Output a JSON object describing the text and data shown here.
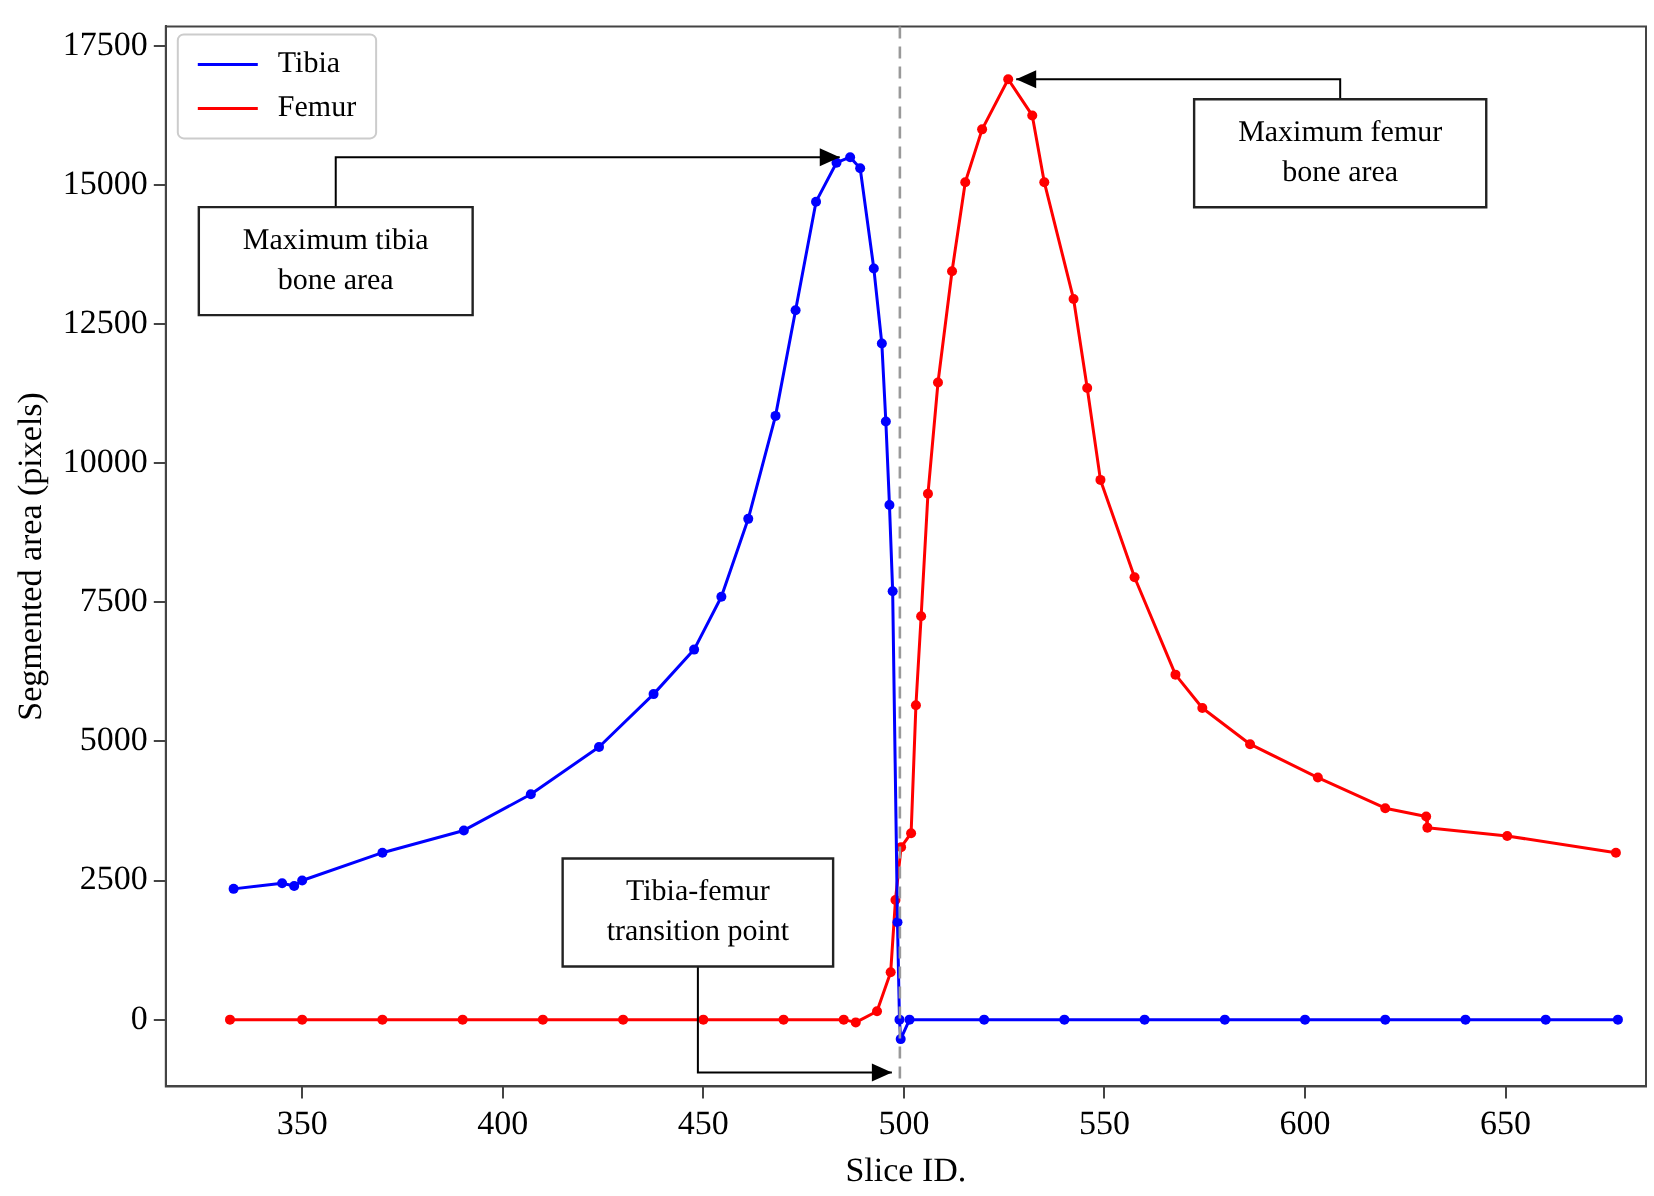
{
  "chart_data": {
    "type": "line",
    "xlabel": "Slice ID.",
    "ylabel": "Segmented area (pixels)",
    "xlim": [
      316,
      685
    ],
    "xticks": [
      350,
      400,
      450,
      500,
      550,
      600,
      650
    ],
    "ylim": [
      -1200,
      17850
    ],
    "yticks": [
      0,
      2500,
      5000,
      7500,
      10000,
      12500,
      15000,
      17500
    ],
    "grid": false,
    "legend": "top left",
    "marker": "circle",
    "line_style": "solid",
    "series": [
      {
        "name": "Tibia",
        "color": "#0000ff",
        "x": [
          332.9,
          345,
          348,
          350,
          370,
          390.3,
          407,
          424,
          437.6,
          447.7,
          454.5,
          461.2,
          468,
          473,
          478.1,
          483.2,
          486.6,
          489.1,
          492.5,
          494.5,
          495.5,
          496.4,
          497.2,
          498.4,
          498.9,
          499.2,
          501.4,
          520,
          540,
          560,
          580,
          600,
          620,
          640,
          660,
          678
        ],
        "values": [
          2350,
          2450,
          2400,
          2500,
          3000,
          3400,
          4050,
          4900,
          5850,
          6650,
          7600,
          9000,
          10850,
          12750,
          14700,
          15400,
          15500,
          15300,
          13500,
          12150,
          10750,
          9250,
          7700,
          1750,
          0,
          -350,
          0,
          0,
          0,
          0,
          0,
          0,
          0,
          0,
          0,
          0
        ]
      },
      {
        "name": "Femur",
        "color": "#ff0000",
        "x": [
          332,
          350,
          370,
          390,
          410,
          430,
          450,
          470,
          485,
          488,
          493.3,
          496.7,
          497.9,
          499.3,
          501.8,
          503,
          504.3,
          506,
          508.5,
          512,
          515.3,
          519.5,
          526,
          532,
          535,
          542.3,
          545.7,
          549,
          557.5,
          567.7,
          574.4,
          586.3,
          603.2,
          620,
          630.2,
          630.5,
          650.4,
          677.5
        ],
        "values": [
          0,
          0,
          0,
          0,
          0,
          0,
          0,
          0,
          0,
          -50,
          150,
          850,
          2150,
          3100,
          3350,
          5650,
          7250,
          9450,
          11450,
          13450,
          15050,
          16000,
          16900,
          16250,
          15050,
          12950,
          11350,
          9700,
          7950,
          6200,
          5600,
          4950,
          4350,
          3800,
          3650,
          3450,
          3300,
          3000
        ]
      }
    ],
    "ref_lines": [
      {
        "axis": "x",
        "value": 499,
        "color": "#999999",
        "line_style": "dashed"
      }
    ],
    "annotations": [
      {
        "text": "Maximum tibia bone area",
        "x": 486,
        "y": 15500
      },
      {
        "text": "Maximum femur bone area",
        "x": 526,
        "y": 16900
      },
      {
        "text": "Tibia-femur transition point",
        "x": 499,
        "y": -950
      }
    ]
  }
}
